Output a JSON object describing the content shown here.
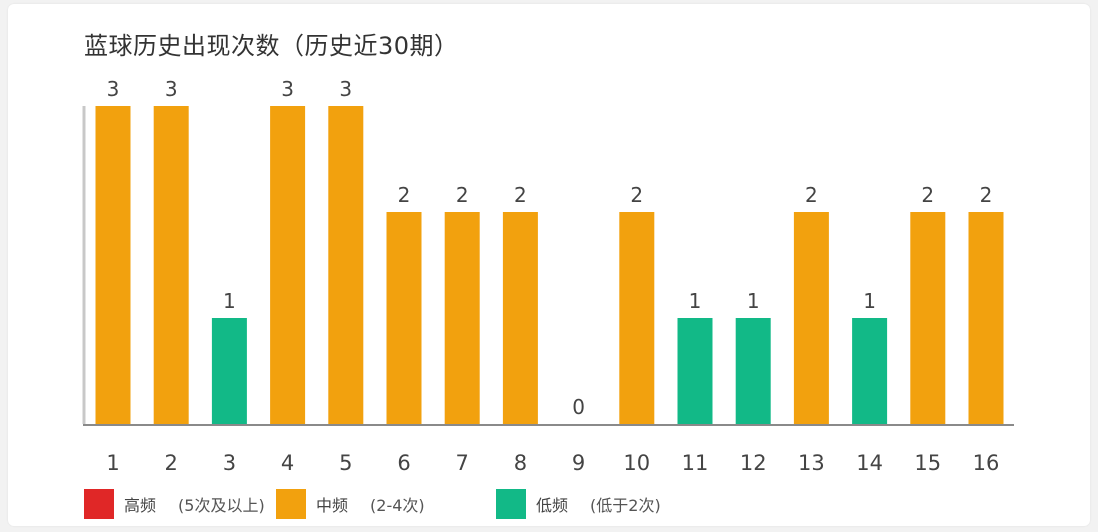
{
  "chart_data": {
    "type": "bar",
    "title": "蓝球历史出现次数（历史近30期）",
    "categories": [
      "1",
      "2",
      "3",
      "4",
      "5",
      "6",
      "7",
      "8",
      "9",
      "10",
      "11",
      "12",
      "13",
      "14",
      "15",
      "16"
    ],
    "values": [
      3,
      3,
      1,
      3,
      3,
      2,
      2,
      2,
      0,
      2,
      1,
      1,
      2,
      1,
      2,
      2
    ],
    "ylim": [
      0,
      3
    ],
    "grid": false,
    "legend_position": "bottom",
    "legend": [
      {
        "name": "高频",
        "range": "(5次及以上)",
        "color": "#e02727"
      },
      {
        "name": "中频",
        "range": "(2-4次)",
        "color": "#f2a10e"
      },
      {
        "name": "低频",
        "range": "(低于2次)",
        "color": "#12b987"
      }
    ],
    "color_rule": {
      "high_min": 5,
      "mid_min": 2
    }
  }
}
